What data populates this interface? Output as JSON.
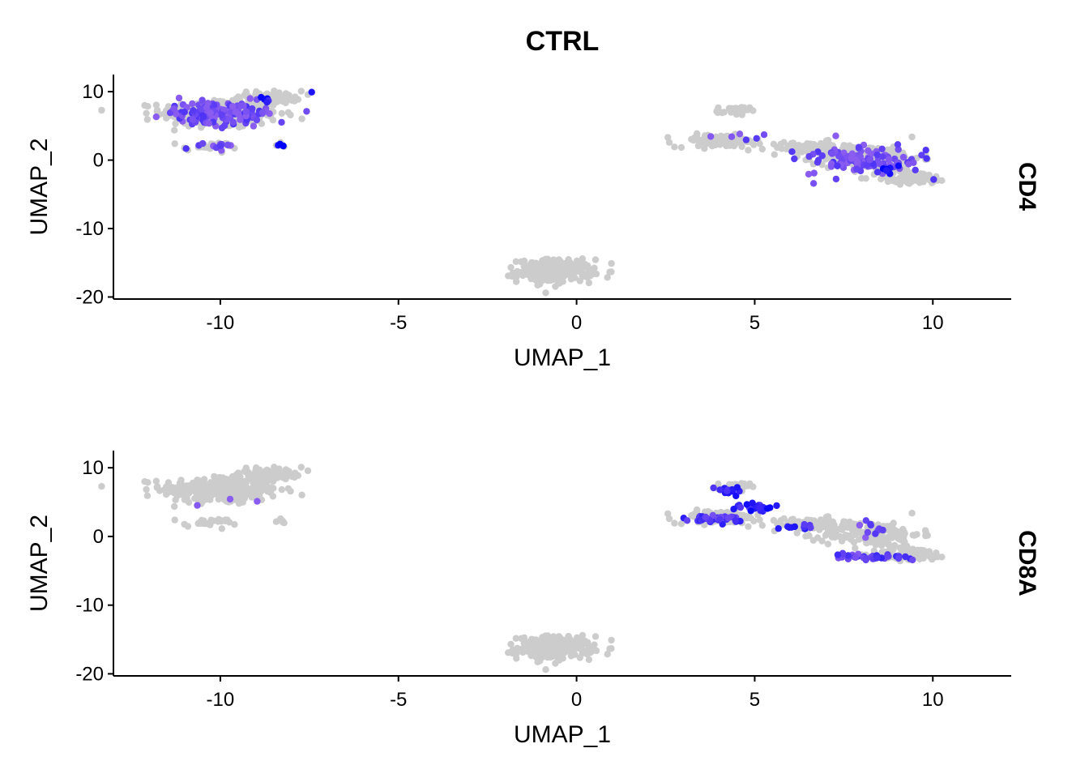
{
  "chart_data": {
    "type": "scatter",
    "title": "CTRL",
    "xlabel": "UMAP_1",
    "ylabel": "UMAP_2",
    "xlim": [
      -13,
      12.2
    ],
    "ylim": [
      -20.3,
      12.5
    ],
    "xticks": [
      -10,
      -5,
      0,
      5,
      10
    ],
    "xtick_labels": [
      "-10",
      "-5",
      "0",
      "5",
      "10"
    ],
    "yticks": [
      10,
      0,
      -10,
      -20
    ],
    "ytick_labels": [
      "10",
      "0",
      "-10",
      "-20"
    ],
    "grid": false,
    "legend": "none",
    "colors": {
      "low": "#cccccc",
      "mid": "#8a5cf0",
      "high": "#0000ff"
    },
    "clusters": [
      {
        "cx": -10.0,
        "cy": 6.8,
        "sx": 1.1,
        "sy": 1.4,
        "n": 300
      },
      {
        "cx": -8.6,
        "cy": 9.2,
        "sx": 0.6,
        "sy": 0.6,
        "n": 60
      },
      {
        "cx": -10.3,
        "cy": 2.0,
        "sx": 0.5,
        "sy": 0.4,
        "n": 25
      },
      {
        "cx": -8.3,
        "cy": 2.2,
        "sx": 0.1,
        "sy": 0.2,
        "n": 6
      },
      {
        "cx": -0.6,
        "cy": -16.2,
        "sx": 0.7,
        "sy": 1.1,
        "n": 260
      },
      {
        "cx": 4.4,
        "cy": 7.2,
        "sx": 0.3,
        "sy": 0.4,
        "n": 25
      },
      {
        "cx": 4.0,
        "cy": 2.8,
        "sx": 0.8,
        "sy": 0.6,
        "n": 100
      },
      {
        "cx": 6.5,
        "cy": 1.8,
        "sx": 0.8,
        "sy": 0.6,
        "n": 80
      },
      {
        "cx": 8.3,
        "cy": 0.3,
        "sx": 0.9,
        "sy": 1.2,
        "n": 160
      },
      {
        "cx": 9.4,
        "cy": -2.6,
        "sx": 0.7,
        "sy": 0.6,
        "n": 90
      }
    ],
    "panels": [
      {
        "feature": "CD4",
        "expression": [
          {
            "cx": -10.0,
            "cy": 6.8,
            "sx": 1.1,
            "sy": 1.3,
            "n": 150,
            "level": 0.5
          },
          {
            "cx": -10.2,
            "cy": 2.0,
            "sx": 0.5,
            "sy": 0.4,
            "n": 12,
            "level": 0.55
          },
          {
            "cx": -8.3,
            "cy": 2.2,
            "sx": 0.1,
            "sy": 0.1,
            "n": 3,
            "level": 0.9
          },
          {
            "cx": -7.5,
            "cy": 9.9,
            "sx": 0.05,
            "sy": 0.05,
            "n": 1,
            "level": 1.0
          },
          {
            "cx": -8.6,
            "cy": 8.8,
            "sx": 0.3,
            "sy": 0.3,
            "n": 5,
            "level": 0.85
          },
          {
            "cx": 8.0,
            "cy": 0.0,
            "sx": 1.3,
            "sy": 1.6,
            "n": 110,
            "level": 0.5
          },
          {
            "cx": 4.5,
            "cy": 3.5,
            "sx": 0.6,
            "sy": 0.6,
            "n": 6,
            "level": 0.5
          },
          {
            "cx": 8.7,
            "cy": -1.3,
            "sx": 0.3,
            "sy": 0.5,
            "n": 6,
            "level": 0.9
          }
        ]
      },
      {
        "feature": "CD8A",
        "expression": [
          {
            "cx": 3.8,
            "cy": 2.6,
            "sx": 0.6,
            "sy": 0.4,
            "n": 40,
            "level": 0.65
          },
          {
            "cx": 5.0,
            "cy": 4.2,
            "sx": 0.4,
            "sy": 0.6,
            "n": 25,
            "level": 0.8
          },
          {
            "cx": 4.4,
            "cy": 6.8,
            "sx": 0.3,
            "sy": 0.5,
            "n": 12,
            "level": 0.75
          },
          {
            "cx": 6.2,
            "cy": 1.5,
            "sx": 0.5,
            "sy": 0.4,
            "n": 10,
            "level": 0.7
          },
          {
            "cx": 8.2,
            "cy": -3.0,
            "sx": 0.8,
            "sy": 0.4,
            "n": 35,
            "level": 0.6
          },
          {
            "cx": 8.5,
            "cy": 0.8,
            "sx": 0.5,
            "sy": 1.0,
            "n": 10,
            "level": 0.5
          },
          {
            "cx": -10.0,
            "cy": 5.5,
            "sx": 0.8,
            "sy": 0.8,
            "n": 3,
            "level": 0.4
          }
        ]
      }
    ]
  }
}
